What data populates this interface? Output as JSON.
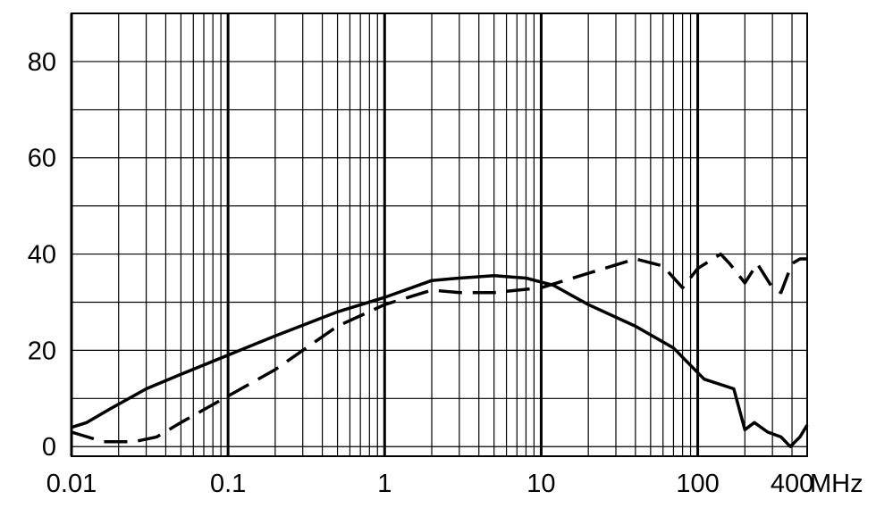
{
  "chart_data": {
    "type": "line",
    "title": "",
    "xlabel": "",
    "ylabel": "",
    "x_unit": "MHz",
    "x_scale": "log",
    "xlim": [
      0.01,
      500
    ],
    "ylim": [
      -2,
      90
    ],
    "grid": true,
    "x_ticks": [
      {
        "value": 0.01,
        "label": "0.01"
      },
      {
        "value": 0.1,
        "label": "0.1"
      },
      {
        "value": 1,
        "label": "1"
      },
      {
        "value": 10,
        "label": "10"
      },
      {
        "value": 100,
        "label": "100"
      },
      {
        "value": 400,
        "label": "400"
      }
    ],
    "y_ticks": [
      {
        "value": 0,
        "label": "0"
      },
      {
        "value": 20,
        "label": "20"
      },
      {
        "value": 40,
        "label": "40"
      },
      {
        "value": 60,
        "label": "60"
      },
      {
        "value": 80,
        "label": "80"
      }
    ],
    "series": [
      {
        "style": "solid",
        "color": "#000000",
        "points": [
          [
            0.01,
            4
          ],
          [
            0.0125,
            5
          ],
          [
            0.018,
            8
          ],
          [
            0.03,
            12
          ],
          [
            0.05,
            15
          ],
          [
            0.1,
            19
          ],
          [
            0.2,
            23
          ],
          [
            0.5,
            28
          ],
          [
            1,
            31
          ],
          [
            2,
            34.5
          ],
          [
            3,
            35
          ],
          [
            5,
            35.5
          ],
          [
            8,
            35
          ],
          [
            12,
            33.5
          ],
          [
            20,
            29.5
          ],
          [
            40,
            25
          ],
          [
            70,
            20.5
          ],
          [
            110,
            14
          ],
          [
            170,
            12
          ],
          [
            200,
            3.5
          ],
          [
            230,
            5
          ],
          [
            280,
            3
          ],
          [
            340,
            2
          ],
          [
            390,
            0
          ],
          [
            450,
            2
          ],
          [
            500,
            4.5
          ]
        ]
      },
      {
        "style": "dashed",
        "color": "#000000",
        "points": [
          [
            0.01,
            3
          ],
          [
            0.016,
            1
          ],
          [
            0.025,
            1
          ],
          [
            0.035,
            2
          ],
          [
            0.05,
            5
          ],
          [
            0.1,
            10.5
          ],
          [
            0.2,
            16
          ],
          [
            0.3,
            20
          ],
          [
            0.5,
            25
          ],
          [
            1,
            29.5
          ],
          [
            2,
            32.5
          ],
          [
            3,
            32
          ],
          [
            5,
            32
          ],
          [
            10,
            33
          ],
          [
            20,
            36
          ],
          [
            40,
            39
          ],
          [
            60,
            37.5
          ],
          [
            80,
            33
          ],
          [
            100,
            37
          ],
          [
            140,
            40
          ],
          [
            160,
            38
          ],
          [
            200,
            34
          ],
          [
            240,
            38
          ],
          [
            300,
            33
          ],
          [
            340,
            32
          ],
          [
            400,
            38
          ],
          [
            450,
            39
          ],
          [
            500,
            39
          ]
        ]
      }
    ]
  }
}
